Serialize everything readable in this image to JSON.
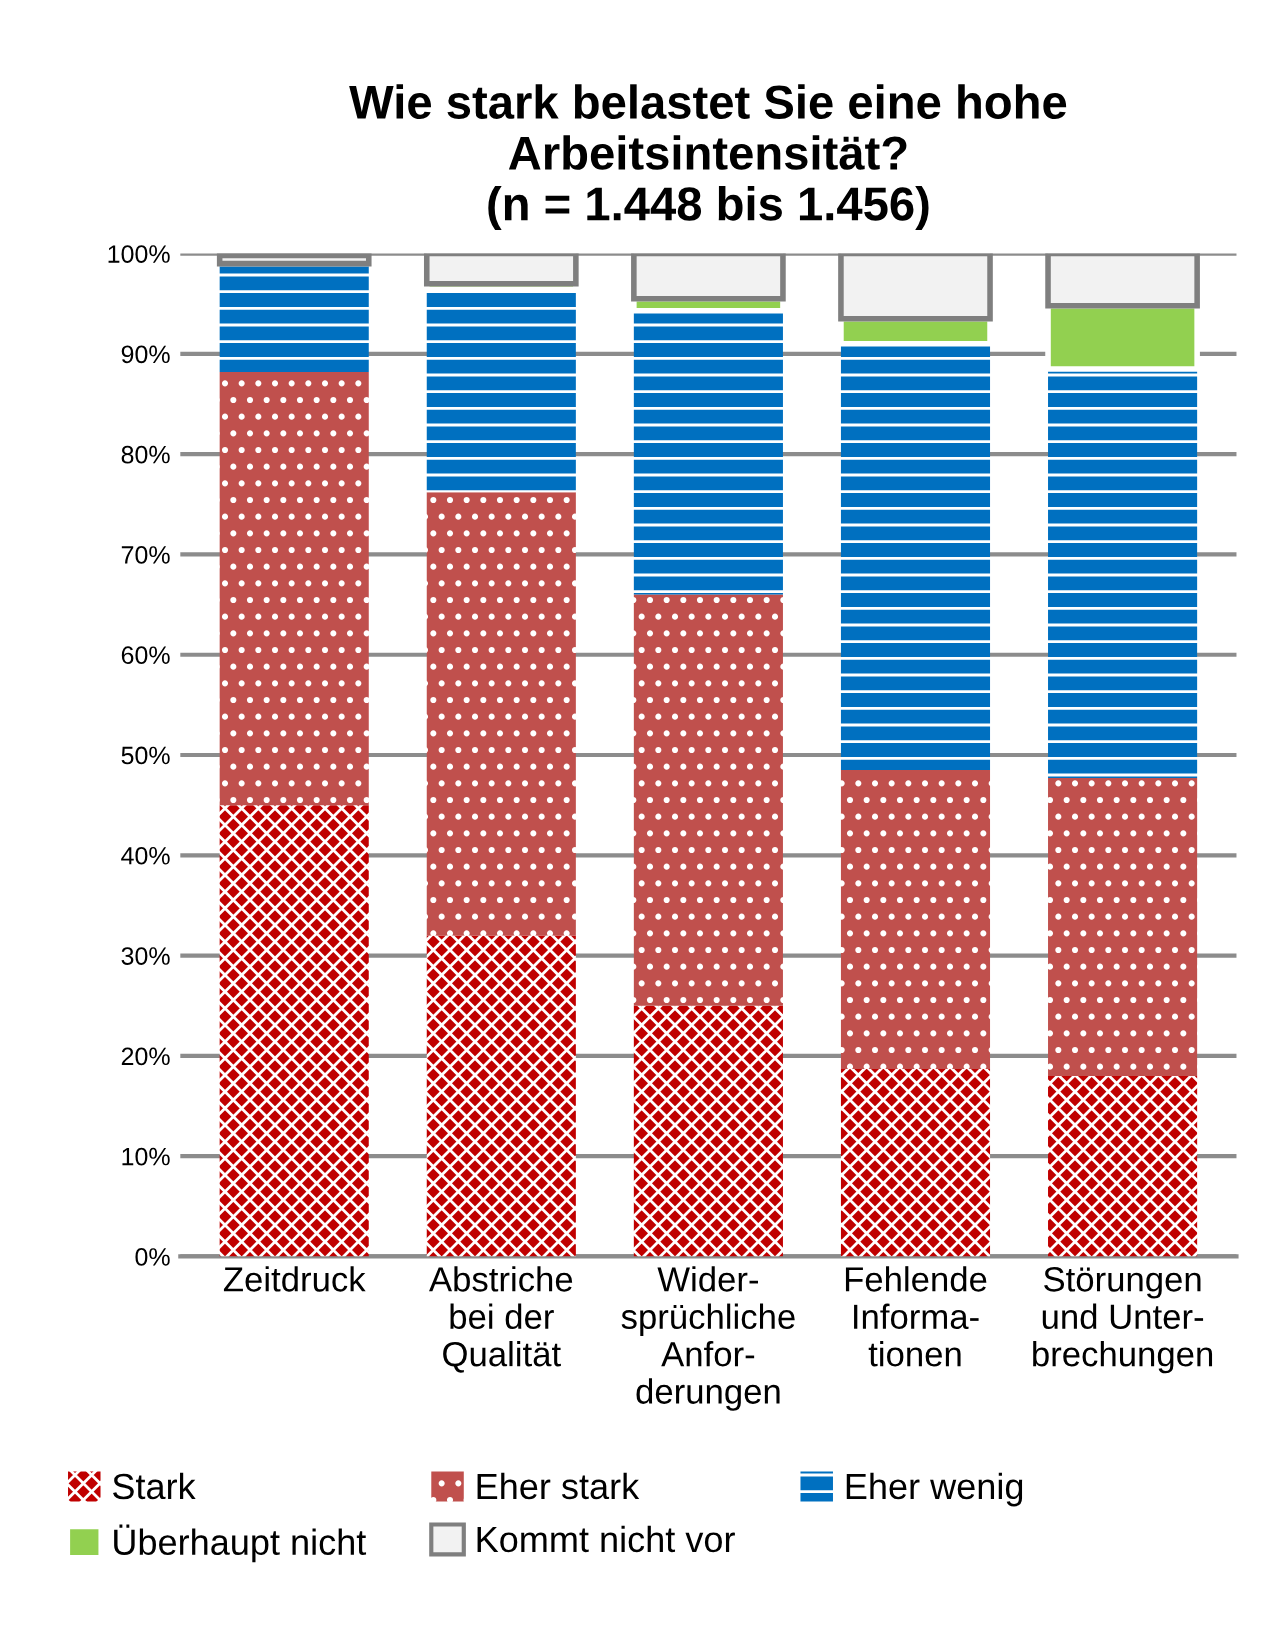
{
  "chart_data": {
    "type": "bar",
    "stacked": true,
    "title": "Wie stark belastet Sie eine hohe\nArbeitsintensität?\n(n = 1.448 bis 1.456)",
    "categories": [
      "Zeitdruck",
      "Abstriche\nbei der\nQualität",
      "Wider-\nsprüchliche\nAnfor-\nderungen",
      "Fehlende\nInforma-\ntionen",
      "Störungen\nund Unter-\nbrechungen"
    ],
    "series": [
      {
        "name": "Stark",
        "color": "#c00000",
        "values": [
          45.0,
          32.0,
          25.0,
          18.7,
          18.0
        ]
      },
      {
        "name": "Eher stark",
        "color": "#c0504d",
        "values": [
          43.2,
          44.2,
          41.0,
          29.8,
          29.7
        ]
      },
      {
        "name": "Eher wenig",
        "color": "#0070c0",
        "values": [
          10.8,
          20.2,
          28.3,
          42.5,
          40.8
        ]
      },
      {
        "name": "Überhaupt nicht",
        "color": "#92d050",
        "values": [
          null,
          0.6,
          1.2,
          2.5,
          6.3
        ]
      },
      {
        "name": "Kommt nicht vor",
        "color": "#f2f2f2",
        "values": [
          0.8,
          3.0,
          4.5,
          6.5,
          5.2
        ]
      }
    ],
    "ylim": [
      0,
      100
    ],
    "yticks": [
      {
        "value": 0,
        "label": "0%"
      },
      {
        "value": 10,
        "label": "10%"
      },
      {
        "value": 20,
        "label": "20%"
      },
      {
        "value": 30,
        "label": "30%"
      },
      {
        "value": 40,
        "label": "40%"
      },
      {
        "value": 50,
        "label": "50%"
      },
      {
        "value": 60,
        "label": "60%"
      },
      {
        "value": 70,
        "label": "70%"
      },
      {
        "value": 80,
        "label": "80%"
      },
      {
        "value": 90,
        "label": "90%"
      },
      {
        "value": 100,
        "label": "100%"
      }
    ],
    "grid": "y",
    "legend": "bottom"
  }
}
